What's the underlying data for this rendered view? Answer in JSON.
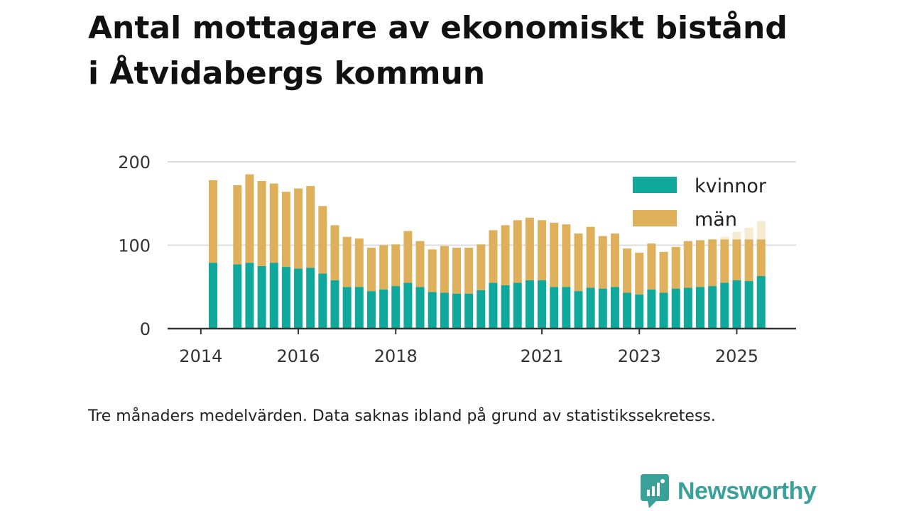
{
  "title_lines": [
    "Antal mottagare av ekonomiskt bistånd",
    "i Åtvidabergs kommun"
  ],
  "note": "Tre månaders medelvärden. Data saknas ibland på grund av statistikssekretess.",
  "brand": {
    "name": "Newsworthy",
    "icon": "newsworthy-logo-icon",
    "color": "#3aa09a"
  },
  "colors": {
    "kvinnor": "#10a89a",
    "man": "#deb05c",
    "projected": "#f6ead2",
    "grid": "#dddddd",
    "axis": "#333333"
  },
  "chart_data": {
    "type": "bar",
    "stacked": true,
    "title": "Antal mottagare av ekonomiskt bistånd i Åtvidabergs kommun",
    "xlabel": "",
    "ylabel": "",
    "ylim": [
      0,
      200
    ],
    "yticks": [
      0,
      100,
      200
    ],
    "grid": true,
    "legend_position": "top-right",
    "xticks": [
      {
        "label": "2014",
        "index": -1
      },
      {
        "label": "2016",
        "index": 7
      },
      {
        "label": "2018",
        "index": 15
      },
      {
        "label": "2021",
        "index": 27
      },
      {
        "label": "2023",
        "index": 35
      },
      {
        "label": "2025",
        "index": 43
      }
    ],
    "legend": [
      {
        "name": "kvinnor",
        "color": "#10a89a"
      },
      {
        "name": "män",
        "color": "#deb05c"
      }
    ],
    "bar_count": 46,
    "note": "bars listed by quarter slot from the first bar; a null means the quarter is missing",
    "series": [
      {
        "name": "kvinnor",
        "color": "#10a89a",
        "values": [
          79,
          null,
          77,
          79,
          75,
          79,
          74,
          72,
          73,
          66,
          58,
          50,
          50,
          45,
          47,
          51,
          55,
          50,
          44,
          43,
          42,
          42,
          46,
          55,
          52,
          55,
          58,
          58,
          50,
          50,
          45,
          49,
          48,
          50,
          43,
          41,
          47,
          43,
          48,
          49,
          50,
          51,
          55,
          58,
          57,
          63
        ]
      },
      {
        "name": "män",
        "color": "#deb05c",
        "values": [
          99,
          null,
          95,
          106,
          102,
          95,
          90,
          96,
          98,
          81,
          66,
          60,
          58,
          52,
          53,
          50,
          62,
          55,
          51,
          56,
          55,
          55,
          55,
          63,
          72,
          75,
          75,
          72,
          77,
          75,
          69,
          73,
          63,
          64,
          53,
          50,
          55,
          49,
          50,
          56,
          56,
          56,
          52,
          49,
          50,
          44
        ]
      },
      {
        "name": "preliminärt",
        "color": "#f6ead2",
        "values": [
          0,
          null,
          0,
          0,
          0,
          0,
          0,
          0,
          0,
          0,
          0,
          0,
          0,
          0,
          0,
          0,
          0,
          0,
          0,
          0,
          0,
          0,
          0,
          0,
          0,
          0,
          0,
          0,
          0,
          0,
          0,
          0,
          0,
          0,
          0,
          0,
          0,
          0,
          0,
          0,
          0,
          0,
          3,
          9,
          14,
          22
        ]
      }
    ]
  }
}
